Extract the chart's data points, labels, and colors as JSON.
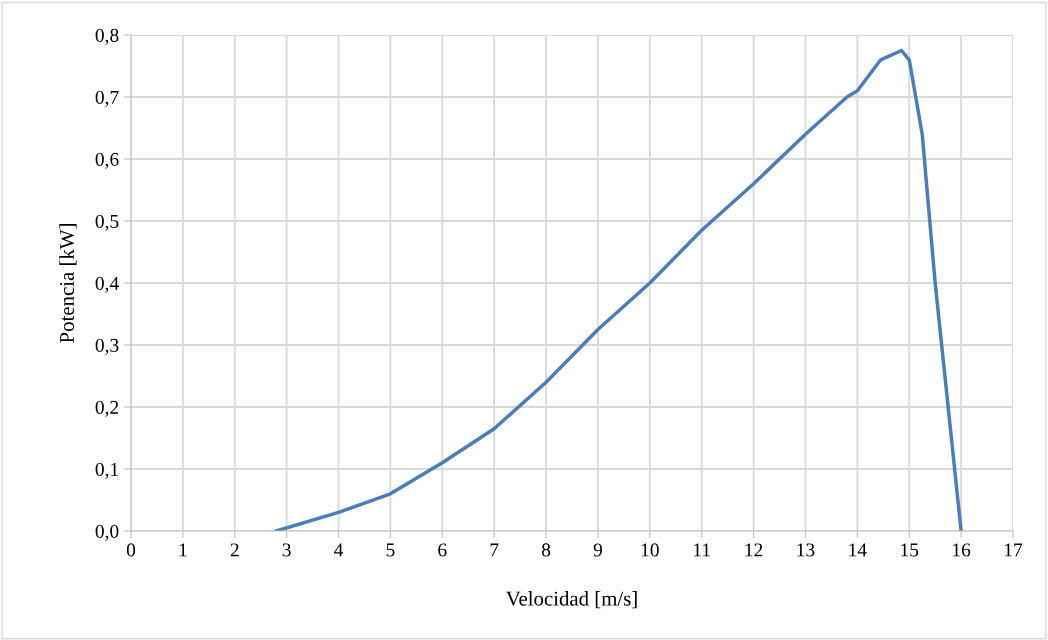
{
  "chart_data": {
    "type": "line",
    "xlabel": "Velocidad [m/s]",
    "ylabel": "Potencia [kW]",
    "x": [
      2.8,
      4,
      5,
      6,
      7,
      8,
      9,
      10,
      11,
      12,
      13,
      13.8,
      14,
      14.45,
      14.85,
      15,
      15.25,
      15.5,
      16
    ],
    "series": [
      {
        "color": "#4a7ebb",
        "values": [
          0,
          0.03,
          0.06,
          0.11,
          0.165,
          0.24,
          0.325,
          0.4,
          0.485,
          0.56,
          0.64,
          0.7,
          0.71,
          0.76,
          0.775,
          0.76,
          0.64,
          0.4,
          0
        ]
      }
    ],
    "xlim": [
      0,
      17
    ],
    "xticks": [
      0,
      1,
      2,
      3,
      4,
      5,
      6,
      7,
      8,
      9,
      10,
      11,
      12,
      13,
      14,
      15,
      16,
      17
    ],
    "ylim": [
      0,
      0.8
    ],
    "yticks": [
      {
        "value": 0,
        "label": "0,0"
      },
      {
        "value": 0.1,
        "label": "0,1"
      },
      {
        "value": 0.2,
        "label": "0,2"
      },
      {
        "value": 0.3,
        "label": "0,3"
      },
      {
        "value": 0.4,
        "label": "0,4"
      },
      {
        "value": 0.5,
        "label": "0,5"
      },
      {
        "value": 0.6,
        "label": "0,6"
      },
      {
        "value": 0.7,
        "label": "0,7"
      },
      {
        "value": 0.8,
        "label": "0,8"
      }
    ],
    "grid": true,
    "marker": "none",
    "line_style": "solid",
    "legend": false
  }
}
